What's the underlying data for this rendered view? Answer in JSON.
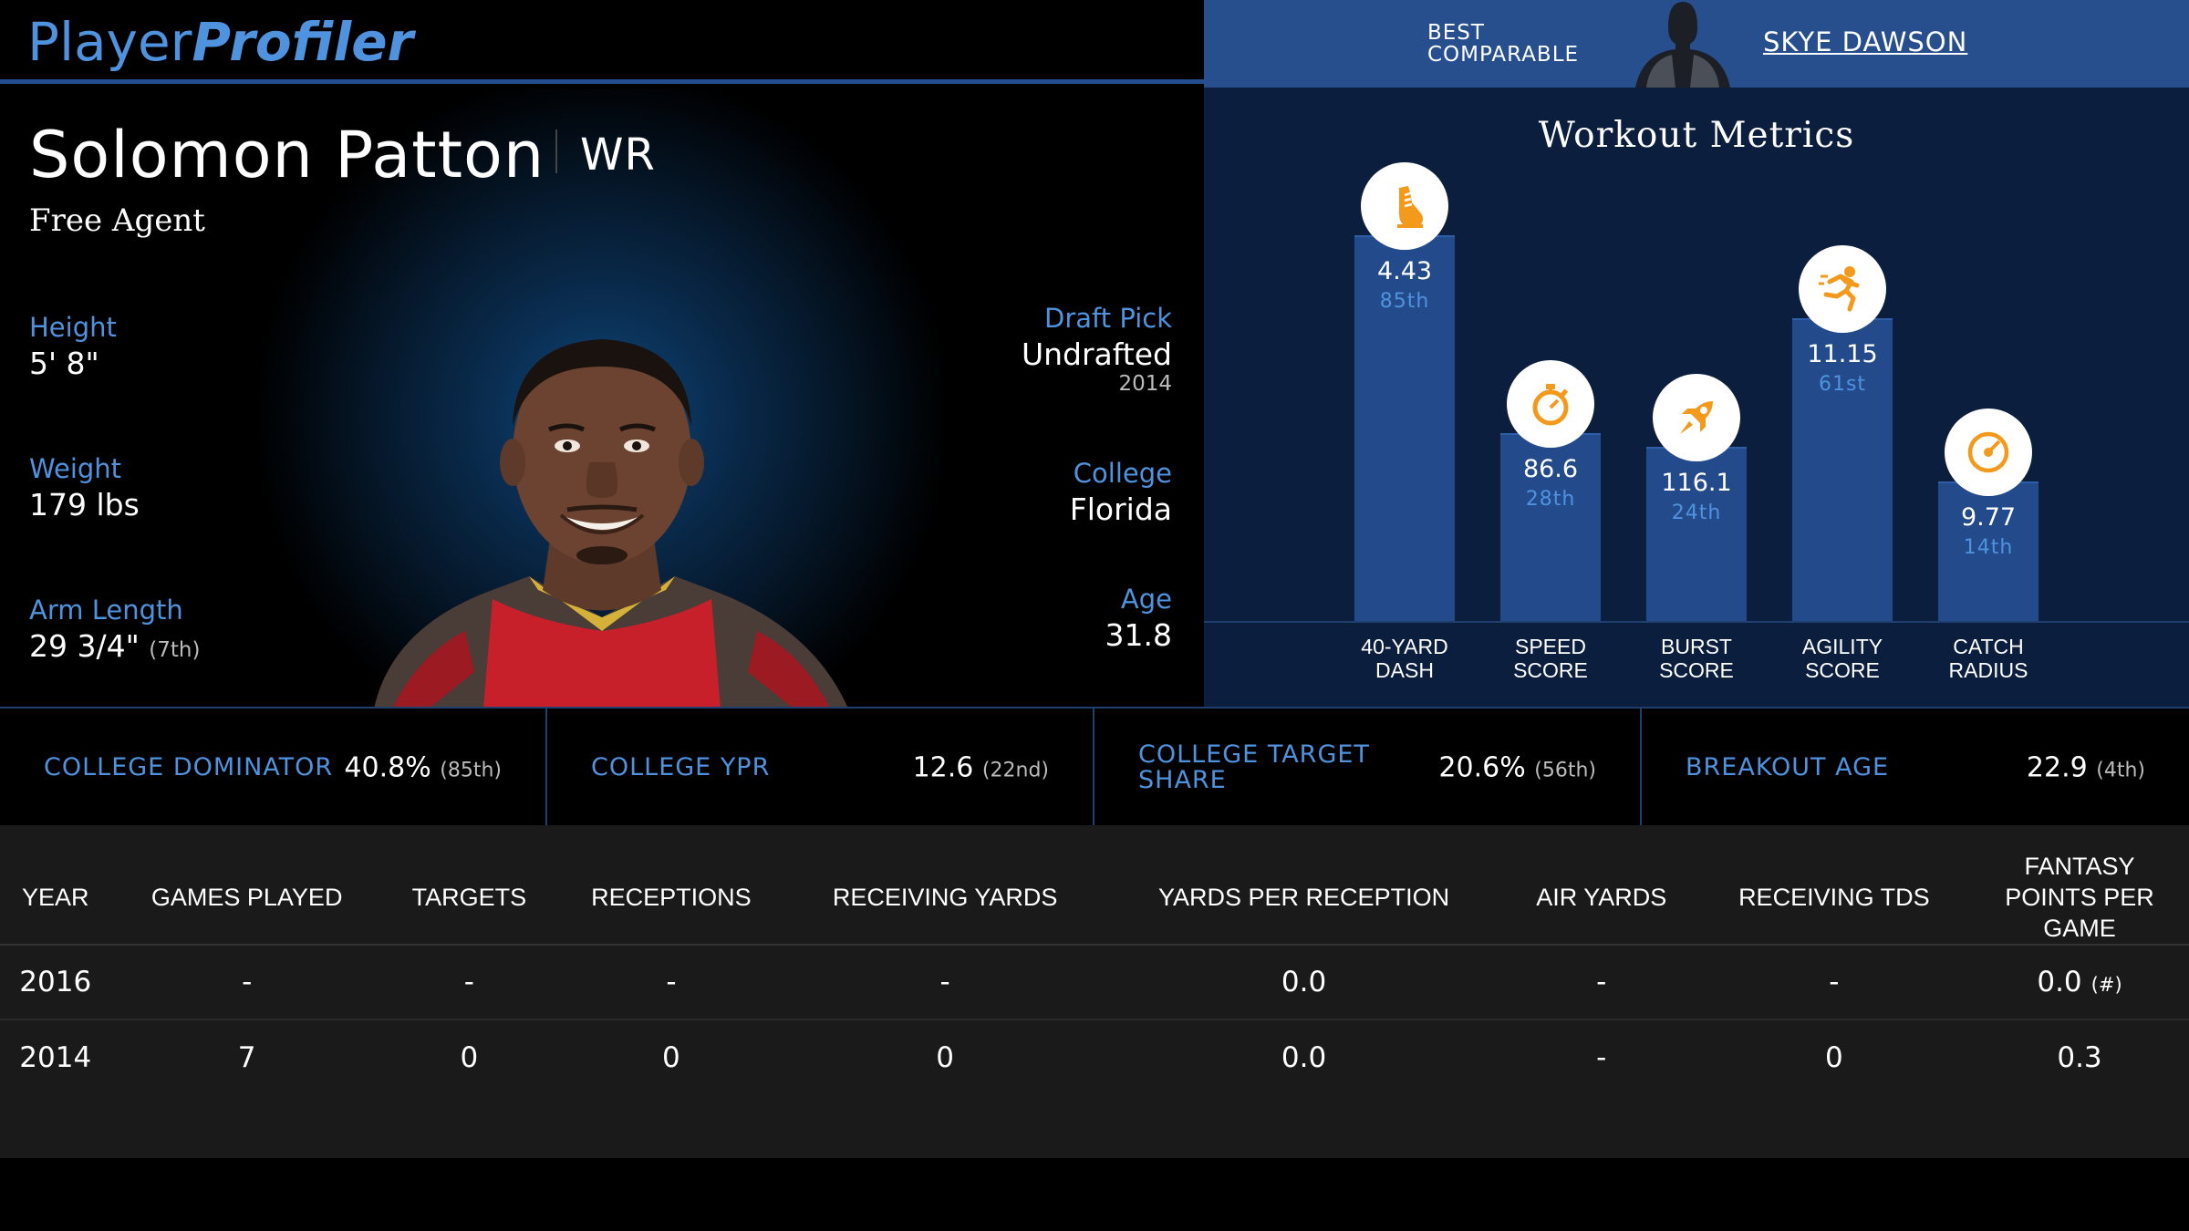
{
  "header": {
    "logo_part1": "Player",
    "logo_part2": "Profiler",
    "best_comparable_label": "BEST COMPARABLE",
    "best_comparable_name": "SKYE DAWSON"
  },
  "player": {
    "name": "Solomon Patton",
    "position": "WR",
    "team": "Free Agent",
    "height_label": "Height",
    "height": "5' 8\"",
    "weight_label": "Weight",
    "weight": "179 lbs",
    "arm_label": "Arm Length",
    "arm": "29 3/4\"",
    "arm_rank": "(7th)",
    "draft_label": "Draft Pick",
    "draft": "Undrafted",
    "draft_year": "2014",
    "college_label": "College",
    "college": "Florida",
    "age_label": "Age",
    "age": "31.8"
  },
  "workout": {
    "title": "Workout Metrics",
    "metrics": [
      {
        "label": "40-YARD\nDASH",
        "value": "4.43",
        "pct": "85th",
        "percentile": 85,
        "icon": "shoe-icon"
      },
      {
        "label": "SPEED\nSCORE",
        "value": "86.6",
        "pct": "28th",
        "percentile": 28,
        "icon": "stopwatch-icon"
      },
      {
        "label": "BURST\nSCORE",
        "value": "116.1",
        "pct": "24th",
        "percentile": 24,
        "icon": "rocket-icon"
      },
      {
        "label": "AGILITY\nSCORE",
        "value": "11.15",
        "pct": "61st",
        "percentile": 61,
        "icon": "runner-icon"
      },
      {
        "label": "CATCH\nRADIUS",
        "value": "9.77",
        "pct": "14th",
        "percentile": 14,
        "icon": "target-icon"
      }
    ],
    "icon_color": "#f39a1d"
  },
  "college_metrics": [
    {
      "label": "COLLEGE DOMINATOR",
      "value": "40.8%",
      "rank": "(85th)"
    },
    {
      "label": "COLLEGE YPR",
      "value": "12.6",
      "rank": "(22nd)"
    },
    {
      "label": "COLLEGE TARGET SHARE",
      "value": "20.6%",
      "rank": "(56th)"
    },
    {
      "label": "BREAKOUT AGE",
      "value": "22.9",
      "rank": "(4th)"
    }
  ],
  "stats_table": {
    "headers": [
      "Year",
      "Games Played",
      "Targets",
      "Receptions",
      "Receiving Yards",
      "Yards Per Reception",
      "Air Yards",
      "Receiving TDs",
      "Fantasy Points Per Game"
    ],
    "rows": [
      [
        "2016",
        "-",
        "-",
        "-",
        "-",
        "0.0",
        "-",
        "-",
        "0.0"
      ],
      [
        "2014",
        "7",
        "0",
        "0",
        "0",
        "0.0",
        "-",
        "0",
        "0.3"
      ]
    ],
    "fp_note": "(#)"
  },
  "colors": {
    "accent_blue": "#4f92de",
    "header_blue": "#274f8e",
    "bar_blue": "#234b8b",
    "icon_orange": "#f39a1d"
  }
}
